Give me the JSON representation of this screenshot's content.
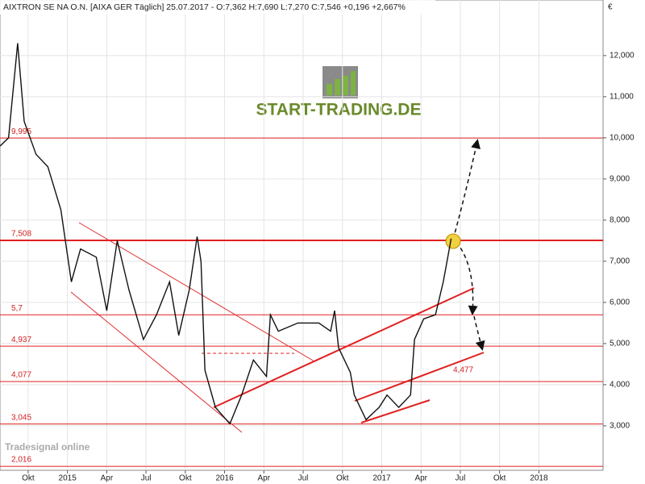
{
  "chart_data": {
    "type": "line",
    "title": "AIXTRON SE NA O.N. [AIXA GER  Täglich] 25.07.2017 - O:7,362 H:7,690 L:7,270 C:7,546 +0,196 +2,667%",
    "currency": "€",
    "logo": "START-TRADING.DE",
    "watermark": "Tradesignal online",
    "annotation": "4,477",
    "xlim": [
      -2.15,
      43.9
    ],
    "ylim": [
      1.92,
      13.35
    ],
    "xticks": [
      {
        "value": 0,
        "label": "Okt"
      },
      {
        "value": 3,
        "label": "2015"
      },
      {
        "value": 6,
        "label": "Apr"
      },
      {
        "value": 9,
        "label": "Jul"
      },
      {
        "value": 12,
        "label": "Okt"
      },
      {
        "value": 15,
        "label": "2016"
      },
      {
        "value": 18,
        "label": "Apr"
      },
      {
        "value": 21,
        "label": "Jul"
      },
      {
        "value": 24,
        "label": "Okt"
      },
      {
        "value": 27,
        "label": "2017"
      },
      {
        "value": 30,
        "label": "Apr"
      },
      {
        "value": 33,
        "label": "Jul"
      },
      {
        "value": 36,
        "label": "Okt"
      },
      {
        "value": 39,
        "label": "2018"
      }
    ],
    "yticks": [
      {
        "value": 3,
        "label": "3,000"
      },
      {
        "value": 4,
        "label": "4,000"
      },
      {
        "value": 5,
        "label": "5,000"
      },
      {
        "value": 6,
        "label": "6,000"
      },
      {
        "value": 7,
        "label": "7,000"
      },
      {
        "value": 8,
        "label": "8,000"
      },
      {
        "value": 9,
        "label": "9,000"
      },
      {
        "value": 10,
        "label": "10,000"
      },
      {
        "value": 11,
        "label": "11,000"
      },
      {
        "value": 12,
        "label": "12,000"
      }
    ],
    "grid": true,
    "levels": [
      {
        "value": 9.995,
        "label": "9,995"
      },
      {
        "value": 7.508,
        "label": "7,508"
      },
      {
        "value": 5.7,
        "label": "5,7"
      },
      {
        "value": 4.937,
        "label": "4,937"
      },
      {
        "value": 4.077,
        "label": "4,077"
      },
      {
        "value": 3.045,
        "label": "3,045"
      },
      {
        "value": 2.016,
        "label": "2,016"
      }
    ],
    "level_color": "#e02020",
    "series": [
      {
        "name": "AIXTRON SE NA O.N.",
        "color": "#111111",
        "x": [
          -2.15,
          -1.5,
          -0.8,
          -0.3,
          0.6,
          1.5,
          2.5,
          3.3,
          4.0,
          5.2,
          6.0,
          6.8,
          7.7,
          8.8,
          9.8,
          10.8,
          11.5,
          12.3,
          12.9,
          13.2,
          13.5,
          14.3,
          15.4,
          16.3,
          17.2,
          18.2,
          18.5,
          19.1,
          20.6,
          22.2,
          23.1,
          23.4,
          23.7,
          24.6,
          24.9,
          25.8,
          26.8,
          27.4,
          28.3,
          29.2,
          29.5,
          30.2,
          31.1,
          31.7,
          32.3
        ],
        "values": [
          9.8,
          10.0,
          12.3,
          10.4,
          9.6,
          9.3,
          8.25,
          6.5,
          7.3,
          7.1,
          5.8,
          7.5,
          6.3,
          5.1,
          5.7,
          6.5,
          5.2,
          6.3,
          7.6,
          7.0,
          4.35,
          3.45,
          3.05,
          3.75,
          4.6,
          4.2,
          5.7,
          5.3,
          5.5,
          5.5,
          5.3,
          5.8,
          4.9,
          4.3,
          3.75,
          3.15,
          3.45,
          3.75,
          3.45,
          3.75,
          5.1,
          5.6,
          5.7,
          6.5,
          7.55
        ]
      }
    ]
  }
}
